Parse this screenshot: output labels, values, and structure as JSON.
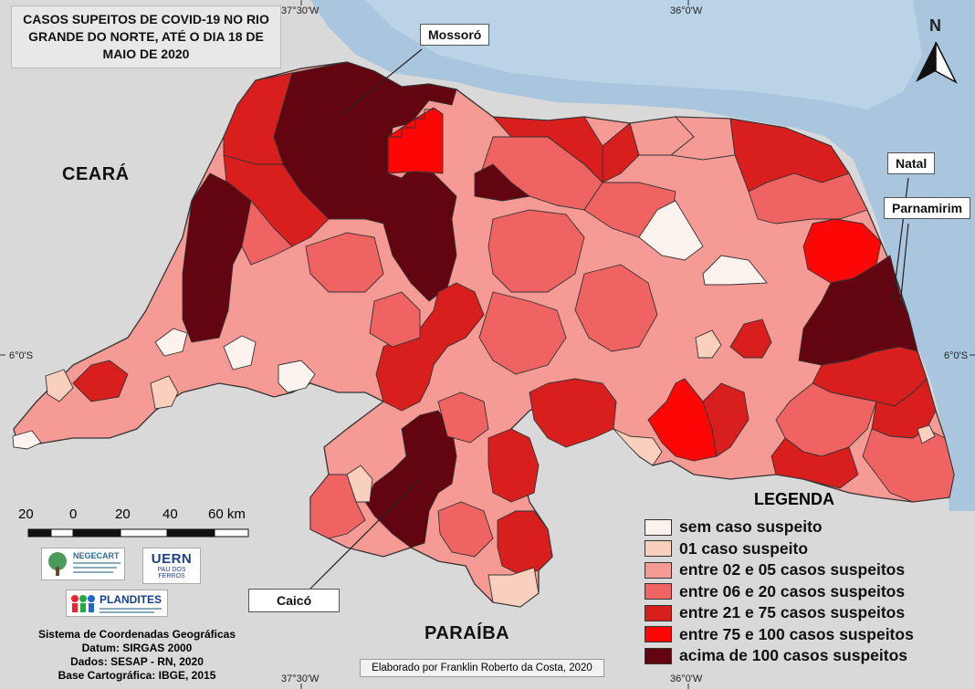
{
  "title": "CASOS SUPEITOS DE COVID-19 NO RIO GRANDE DO NORTE, ATÉ O DIA 18 DE MAIO DE 2020",
  "coordinates": {
    "top_left": "37°30'W",
    "top_right": "36°0'W",
    "bottom_left": "37°30'W",
    "bottom_right": "36°0'W",
    "left_lat": "6°0'S",
    "right_lat": "6°0'S"
  },
  "north_arrow": "N",
  "region_labels": {
    "ceara": "CEARÁ",
    "paraiba": "PARAÍBA"
  },
  "city_labels": {
    "mossoro": "Mossoró",
    "natal": "Natal",
    "parnamirim": "Parnamirim",
    "caico": "Caicó"
  },
  "legend": {
    "title": "LEGENDA",
    "items": [
      {
        "label": "sem caso suspeito",
        "color": "#fdf3ee"
      },
      {
        "label": "01 caso suspeito",
        "color": "#f9d0bd"
      },
      {
        "label": "entre 02 e 05 casos suspeitos",
        "color": "#f59a94"
      },
      {
        "label": "entre 06 e 20 casos suspeitos",
        "color": "#ef6462"
      },
      {
        "label": "entre 21 e 75 casos suspeitos",
        "color": "#d91e1e"
      },
      {
        "label": "entre 75 e 100 casos suspeitos",
        "color": "#fd0606"
      },
      {
        "label": "acima de 100 casos suspeitos",
        "color": "#620510"
      }
    ]
  },
  "scale": {
    "labels": [
      "20",
      "0",
      "20",
      "40",
      "60 km"
    ]
  },
  "logos": {
    "negecart": "NEGECART",
    "uern": "UERN",
    "uern_sub": "PAU DOS FERROS",
    "plandites": "PLANDITES"
  },
  "info": {
    "line1": "Sistema de Coordenadas Geográficas",
    "line2": "Datum: SIRGAS 2000",
    "line3": "Dados: SESAP - RN, 2020",
    "line4": "Base Cartográfica: IBGE, 2015"
  },
  "credit": "Elaborado por Franklin Roberto da Costa, 2020"
}
